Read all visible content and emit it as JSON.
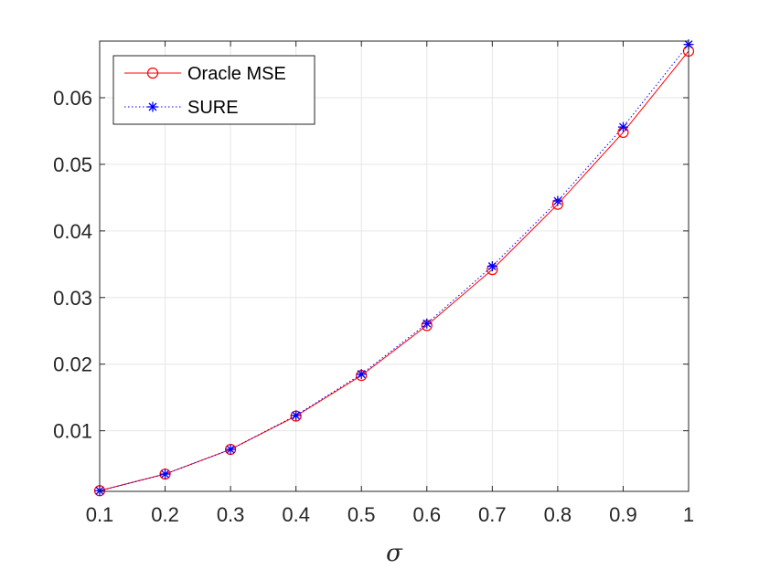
{
  "chart_data": {
    "type": "line",
    "xlabel": "σ",
    "ylabel": "",
    "title": "",
    "x": [
      0.1,
      0.2,
      0.3,
      0.4,
      0.5,
      0.6,
      0.7,
      0.8,
      0.9,
      1.0
    ],
    "xlim": [
      0.1,
      1.0
    ],
    "ylim": [
      0.0009,
      0.0685
    ],
    "xticks": [
      "0.1",
      "0.2",
      "0.3",
      "0.4",
      "0.5",
      "0.6",
      "0.7",
      "0.8",
      "0.9",
      "1"
    ],
    "yticks": [
      "0.01",
      "0.02",
      "0.03",
      "0.04",
      "0.05",
      "0.06"
    ],
    "yticks_values": [
      0.01,
      0.02,
      0.03,
      0.04,
      0.05,
      0.06
    ],
    "grid": true,
    "legend_position": "top-left",
    "series": [
      {
        "name": "Oracle MSE",
        "color": "#ff0000",
        "line_style": "solid",
        "marker": "circle",
        "values": [
          0.001,
          0.0035,
          0.0072,
          0.0122,
          0.0183,
          0.0258,
          0.0342,
          0.044,
          0.0548,
          0.067
        ]
      },
      {
        "name": "SURE",
        "color": "#0000ff",
        "line_style": "dotted",
        "marker": "asterisk",
        "values": [
          0.001,
          0.0035,
          0.0072,
          0.0123,
          0.0185,
          0.0261,
          0.0347,
          0.0445,
          0.0556,
          0.068
        ]
      }
    ]
  }
}
